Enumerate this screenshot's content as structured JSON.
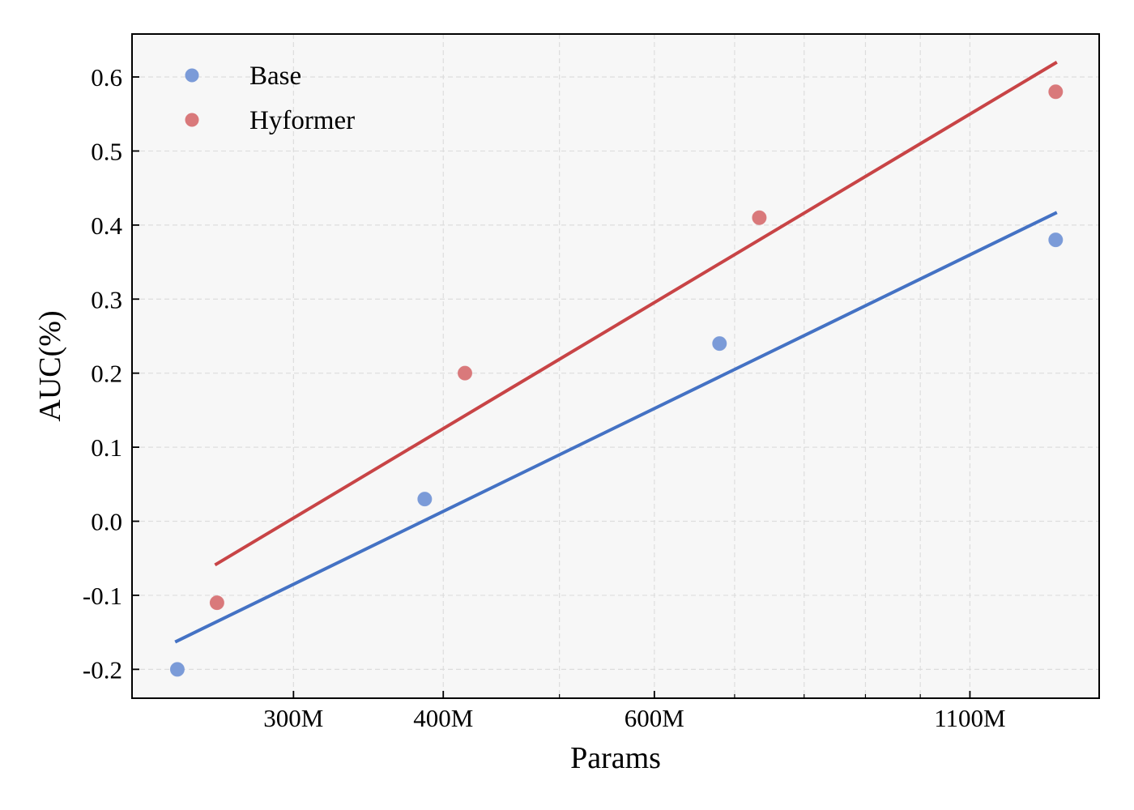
{
  "chart_data": {
    "type": "scatter",
    "title": "",
    "xlabel": "Params",
    "ylabel": "AUC(%)",
    "xscale": "log",
    "xlim": [
      220,
      1410
    ],
    "ylim": [
      -0.239,
      0.658
    ],
    "x_ticks": [
      {
        "value": 300,
        "label": "300M"
      },
      {
        "value": 400,
        "label": "400M"
      },
      {
        "value": 600,
        "label": "600M"
      },
      {
        "value": 1100,
        "label": "1100M"
      }
    ],
    "x_minor_ticks": [
      500,
      700,
      800,
      900,
      1000
    ],
    "y_ticks": [
      {
        "value": -0.2,
        "label": "-0.2"
      },
      {
        "value": -0.1,
        "label": "-0.1"
      },
      {
        "value": 0.0,
        "label": "0.0"
      },
      {
        "value": 0.1,
        "label": "0.1"
      },
      {
        "value": 0.2,
        "label": "0.2"
      },
      {
        "value": 0.3,
        "label": "0.3"
      },
      {
        "value": 0.4,
        "label": "0.4"
      },
      {
        "value": 0.5,
        "label": "0.5"
      },
      {
        "value": 0.6,
        "label": "0.6"
      }
    ],
    "grid": true,
    "legend_position": "top-left",
    "series": [
      {
        "name": "Base",
        "color": "#4472c4",
        "marker_color": "#7b9bd8",
        "x": [
          240,
          386,
          680,
          1297
        ],
        "y": [
          -0.2,
          0.03,
          0.24,
          0.38
        ],
        "fit_line": {
          "x": [
            239,
            1300
          ],
          "y": [
            -0.163,
            0.417
          ]
        }
      },
      {
        "name": "Hyformer",
        "color": "#c84446",
        "marker_color": "#d9797b",
        "x": [
          259,
          417,
          734,
          1297
        ],
        "y": [
          -0.11,
          0.2,
          0.41,
          0.58
        ],
        "fit_line": {
          "x": [
            258,
            1300
          ],
          "y": [
            -0.059,
            0.62
          ]
        }
      }
    ]
  }
}
